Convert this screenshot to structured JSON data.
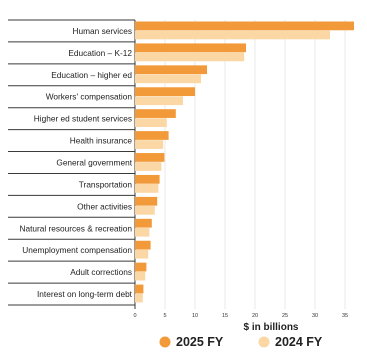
{
  "chart_data": {
    "type": "bar",
    "orientation": "horizontal",
    "categories": [
      "Human services",
      "Education – K-12",
      "Education – higher ed",
      "Workers' compensation",
      "Higher ed student services",
      "Health insurance",
      "General government",
      "Transportation",
      "Other activities",
      "Natural resources & recreation",
      "Unemployment compensation",
      "Adult corrections",
      "Interest on long-term debt"
    ],
    "series": [
      {
        "name": "2025 FY",
        "color": "#f29a3a",
        "values": [
          36.5,
          18.5,
          12.0,
          10.0,
          6.8,
          5.6,
          4.9,
          4.1,
          3.7,
          2.8,
          2.6,
          1.9,
          1.4
        ]
      },
      {
        "name": "2024 FY",
        "color": "#fcd7a6",
        "values": [
          32.5,
          18.2,
          11.0,
          8.0,
          5.3,
          4.7,
          4.4,
          3.9,
          3.3,
          2.4,
          2.2,
          1.7,
          1.3
        ]
      }
    ],
    "xticks": [
      0,
      5,
      10,
      15,
      20,
      25,
      30,
      35
    ],
    "xlim": [
      0,
      37
    ],
    "xlabel": "$ in billions",
    "title": "",
    "legend_position": "bottom",
    "grid": true
  }
}
